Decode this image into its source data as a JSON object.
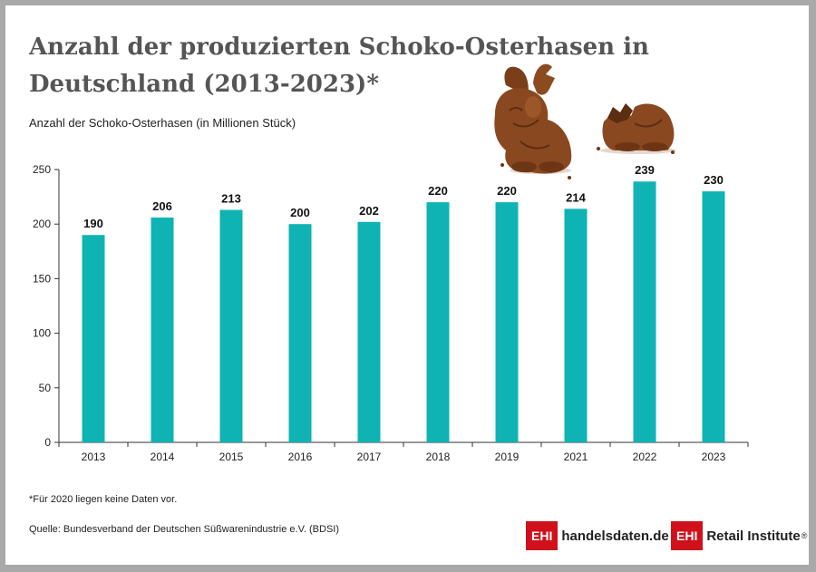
{
  "title": "Anzahl der produzierten Schoko-Osterhasen in Deutschland (2013-2023)*",
  "subtitle": "Anzahl der Schoko-Osterhasen (in Millionen Stück)",
  "footnote": "*Für 2020 liegen keine Daten vor.",
  "source": "Quelle: Bundesverband der Deutschen Süßwarenindustrie e.V. (BDSI)",
  "logos": {
    "handelsdaten_box": "EHI",
    "handelsdaten_text": "handelsdaten.de",
    "retail_box": "EHI",
    "retail_text": "Retail Institute",
    "retail_mark": "®"
  },
  "colors": {
    "bar": "#0fb3b3",
    "brand_red": "#d0111b",
    "title": "#555555"
  },
  "chart_data": {
    "type": "bar",
    "categories": [
      "2013",
      "2014",
      "2015",
      "2016",
      "2017",
      "2018",
      "2019",
      "2021",
      "2022",
      "2023"
    ],
    "values": [
      190,
      206,
      213,
      200,
      202,
      220,
      220,
      214,
      239,
      230
    ],
    "title": "Anzahl der produzierten Schoko-Osterhasen in Deutschland (2013-2023)*",
    "xlabel": "",
    "ylabel": "Anzahl der Schoko-Osterhasen (in Millionen Stück)",
    "ylim": [
      0,
      250
    ],
    "yticks": [
      0,
      50,
      100,
      150,
      200,
      250
    ],
    "grid": false,
    "data_labels": true
  }
}
